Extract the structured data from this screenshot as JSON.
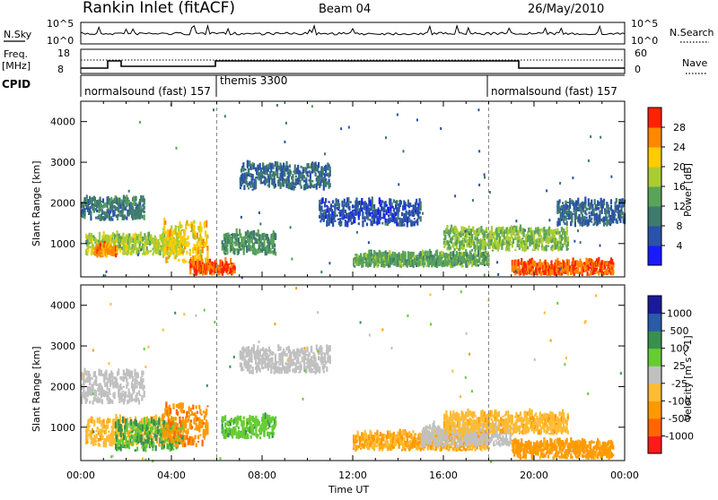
{
  "header": {
    "title": "Rankin Inlet (fitACF)",
    "beam": "Beam 04",
    "date": "26/May/2010"
  },
  "noise_panel": {
    "left_label": "N.Sky",
    "right_label": "N.Search",
    "left_ticks": [
      "10^5",
      "10^0"
    ],
    "right_ticks": [
      "10^5",
      "10^0"
    ]
  },
  "freq_panel": {
    "left_label_1": "Freq.",
    "left_label_2": "[MHz]",
    "right_label": "Nave",
    "left_ticks": [
      "18",
      "8"
    ],
    "right_ticks": [
      "60",
      "0"
    ]
  },
  "cpid_panel": {
    "label": "CPID",
    "segments": [
      {
        "start_hour": 0,
        "end_hour": 6,
        "text": "normalsound (fast) 157"
      },
      {
        "start_hour": 6,
        "end_hour": 18,
        "text": "themis 3300"
      },
      {
        "start_hour": 18,
        "end_hour": 24,
        "text": "normalsound (fast) 157"
      }
    ]
  },
  "axes": {
    "xlabel": "Time UT",
    "xticks": [
      "00:00",
      "04:00",
      "08:00",
      "12:00",
      "16:00",
      "20:00",
      "00:00"
    ],
    "ylabel": "Slant Range [km]",
    "yticks": [
      "1000",
      "2000",
      "3000",
      "4000"
    ]
  },
  "chart_data": [
    {
      "type": "heatmap",
      "title": "",
      "xlabel": "",
      "ylabel": "Slant Range [km]",
      "xlim": [
        0,
        24
      ],
      "ylim": [
        180,
        4500
      ],
      "colorbar": {
        "label": "Power [dB]",
        "ticks": [
          "4",
          "8",
          "12",
          "16",
          "20",
          "24",
          "28"
        ],
        "range": [
          0,
          32
        ],
        "colors": [
          "#1a1aff",
          "#2a52a8",
          "#3f7a6e",
          "#5aa35a",
          "#aacc33",
          "#ffcc00",
          "#ff8800",
          "#ff2200"
        ]
      },
      "features": [
        {
          "t0": 0.0,
          "t1": 2.8,
          "r0": 1550,
          "r1": 2050,
          "level": 10
        },
        {
          "t0": 0.2,
          "t1": 4.6,
          "r0": 700,
          "r1": 1150,
          "level": 18
        },
        {
          "t0": 0.6,
          "t1": 1.6,
          "r0": 650,
          "r1": 900,
          "level": 26
        },
        {
          "t0": 3.6,
          "t1": 5.6,
          "r0": 500,
          "r1": 1500,
          "level": 22
        },
        {
          "t0": 4.8,
          "t1": 6.8,
          "r0": 200,
          "r1": 500,
          "level": 28
        },
        {
          "t0": 6.2,
          "t1": 8.6,
          "r0": 700,
          "r1": 1200,
          "level": 12
        },
        {
          "t0": 7.0,
          "t1": 11.0,
          "r0": 2300,
          "r1": 2900,
          "level": 8
        },
        {
          "t0": 10.5,
          "t1": 15.0,
          "r0": 1400,
          "r1": 2000,
          "level": 6
        },
        {
          "t0": 12.0,
          "t1": 18.0,
          "r0": 400,
          "r1": 700,
          "level": 14
        },
        {
          "t0": 16.0,
          "t1": 21.5,
          "r0": 800,
          "r1": 1300,
          "level": 16
        },
        {
          "t0": 19.0,
          "t1": 23.5,
          "r0": 200,
          "r1": 500,
          "level": 28
        },
        {
          "t0": 21.0,
          "t1": 24.0,
          "r0": 1400,
          "r1": 2000,
          "level": 8
        }
      ]
    },
    {
      "type": "heatmap",
      "title": "",
      "xlabel": "Time UT",
      "ylabel": "Slant Range [km]",
      "xlim": [
        0,
        24
      ],
      "ylim": [
        180,
        4500
      ],
      "colorbar": {
        "label": "Velocity [m s^-1]",
        "ticks": [
          "1000",
          "500",
          "100",
          "25",
          "-25",
          "-100",
          "-500",
          "-1000"
        ],
        "range": [
          -1200,
          1200
        ],
        "colors": [
          "#ff1a1a",
          "#ff6600",
          "#ff9900",
          "#ffbb33",
          "#c0c0c0",
          "#66cc33",
          "#3a8f50",
          "#2a5aa8",
          "#1a1a99"
        ]
      },
      "features": [
        {
          "t0": 0.0,
          "t1": 2.8,
          "r0": 1550,
          "r1": 2300,
          "level": 0
        },
        {
          "t0": 0.2,
          "t1": 4.6,
          "r0": 500,
          "r1": 1150,
          "level": -300
        },
        {
          "t0": 1.5,
          "t1": 4.5,
          "r0": 400,
          "r1": 1100,
          "level": 400
        },
        {
          "t0": 3.6,
          "t1": 5.6,
          "r0": 500,
          "r1": 1500,
          "level": -600
        },
        {
          "t0": 6.2,
          "t1": 8.6,
          "r0": 700,
          "r1": 1200,
          "level": 300
        },
        {
          "t0": 7.0,
          "t1": 11.0,
          "r0": 2300,
          "r1": 2900,
          "level": 0
        },
        {
          "t0": 12.0,
          "t1": 18.0,
          "r0": 400,
          "r1": 800,
          "level": -400
        },
        {
          "t0": 15.0,
          "t1": 19.0,
          "r0": 500,
          "r1": 1000,
          "level": 0
        },
        {
          "t0": 16.0,
          "t1": 21.5,
          "r0": 800,
          "r1": 1300,
          "level": -300
        },
        {
          "t0": 19.0,
          "t1": 23.5,
          "r0": 200,
          "r1": 600,
          "level": -500
        }
      ]
    }
  ]
}
